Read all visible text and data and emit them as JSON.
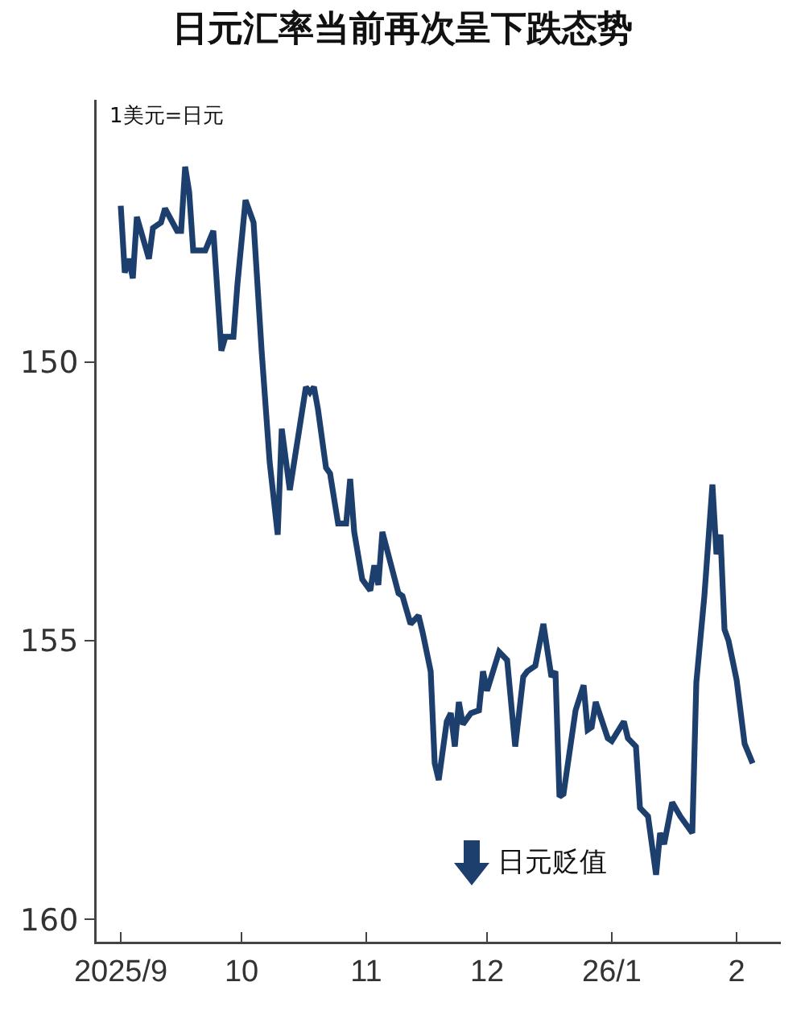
{
  "chart_data": {
    "type": "line",
    "title": "日元汇率当前再次呈下跌态势",
    "ylabel": "1美元=日元",
    "x": [
      "2025-09-01",
      "2025-09-02",
      "2025-09-03",
      "2025-09-04",
      "2025-09-05",
      "2025-09-08",
      "2025-09-09",
      "2025-09-11",
      "2025-09-12",
      "2025-09-15",
      "2025-09-16",
      "2025-09-17",
      "2025-09-18",
      "2025-09-19",
      "2025-09-22",
      "2025-09-24",
      "2025-09-26",
      "2025-09-27",
      "2025-09-29",
      "2025-09-30",
      "2025-10-02",
      "2025-10-04",
      "2025-10-06",
      "2025-10-08",
      "2025-10-10",
      "2025-10-11",
      "2025-10-13",
      "2025-10-17",
      "2025-10-18",
      "2025-10-19",
      "2025-10-20",
      "2025-10-22",
      "2025-10-23",
      "2025-10-25",
      "2025-10-27",
      "2025-10-28",
      "2025-10-29",
      "2025-10-31",
      "2025-11-02",
      "2025-11-03",
      "2025-11-04",
      "2025-11-05",
      "2025-11-09",
      "2025-11-10",
      "2025-11-12",
      "2025-11-14",
      "2025-11-15",
      "2025-11-17",
      "2025-11-18",
      "2025-11-19",
      "2025-11-21",
      "2025-11-22",
      "2025-11-23",
      "2025-11-24",
      "2025-11-25",
      "2025-11-27",
      "2025-11-29",
      "2025-11-30",
      "2025-12-01",
      "2025-12-04",
      "2025-12-06",
      "2025-12-08",
      "2025-12-10",
      "2025-12-11",
      "2025-12-13",
      "2025-12-15",
      "2025-12-17",
      "2025-12-18",
      "2025-12-19",
      "2025-12-20",
      "2025-12-23",
      "2025-12-25",
      "2025-12-26",
      "2025-12-27",
      "2025-12-28",
      "2025-12-31",
      "2026-01-01",
      "2026-01-04",
      "2026-01-05",
      "2026-01-07",
      "2026-01-08",
      "2026-01-10",
      "2026-01-12",
      "2026-01-13",
      "2026-01-14",
      "2026-01-16",
      "2026-01-18",
      "2026-01-21",
      "2026-01-22",
      "2026-01-24",
      "2026-01-26",
      "2026-01-27",
      "2026-01-28",
      "2026-01-29",
      "2026-01-30",
      "2026-02-01",
      "2026-02-03",
      "2026-02-05"
    ],
    "series": [
      {
        "color": "#1d3f6e",
        "values": [
          147.2,
          148.4,
          148.15,
          148.5,
          147.4,
          148.15,
          147.6,
          147.5,
          147.25,
          147.65,
          147.65,
          146.5,
          146.95,
          148.0,
          148.0,
          147.65,
          149.8,
          149.55,
          149.55,
          148.6,
          147.1,
          147.5,
          149.8,
          151.8,
          153.1,
          151.2,
          152.3,
          150.45,
          150.55,
          150.45,
          150.85,
          151.9,
          152.0,
          152.9,
          152.9,
          152.1,
          153.05,
          153.9,
          154.1,
          153.65,
          154.0,
          153.05,
          154.15,
          154.2,
          154.7,
          154.55,
          154.85,
          155.55,
          157.2,
          157.5,
          156.45,
          156.3,
          156.9,
          156.1,
          156.5,
          156.3,
          156.25,
          155.55,
          155.9,
          155.2,
          155.35,
          156.9,
          155.65,
          155.55,
          155.45,
          154.7,
          155.65,
          155.55,
          157.8,
          157.75,
          156.25,
          155.8,
          156.6,
          156.55,
          156.1,
          156.75,
          156.8,
          156.45,
          156.75,
          156.9,
          158.0,
          158.15,
          159.2,
          158.45,
          158.65,
          157.9,
          158.15,
          158.45,
          155.75,
          154.2,
          152.2,
          153.45,
          153.1,
          154.8,
          155.0,
          155.7,
          156.85,
          157.2
        ]
      }
    ],
    "xlim": [
      "2025-08-26",
      "2026-02-12"
    ],
    "xticks": [
      {
        "value": "2025-09-01",
        "label": "2025/9"
      },
      {
        "value": "2025-10-01",
        "label": "10"
      },
      {
        "value": "2025-11-01",
        "label": "11"
      },
      {
        "value": "2025-12-01",
        "label": "12"
      },
      {
        "value": "2026-01-01",
        "label": "26/1"
      },
      {
        "value": "2026-02-01",
        "label": "2"
      }
    ],
    "ylim": [
      160.4,
      145.3
    ],
    "yticks": [
      150,
      155,
      160
    ],
    "annotations": [
      "日元贬值"
    ],
    "grid": false,
    "marker": "none",
    "line_style": "solid"
  }
}
